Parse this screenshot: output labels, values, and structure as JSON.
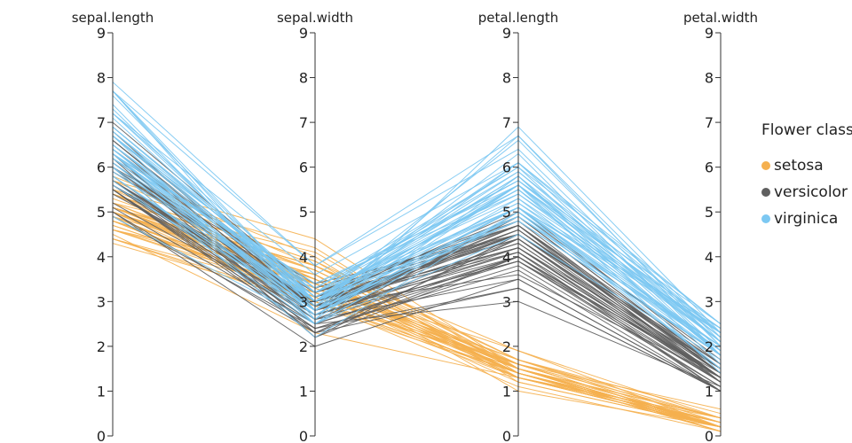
{
  "chart_data": {
    "type": "parallel_coordinates",
    "dimensions": [
      "sepal.length",
      "sepal.width",
      "petal.length",
      "petal.width"
    ],
    "range": [
      0,
      9
    ],
    "ticks": [
      "0",
      "1",
      "2",
      "3",
      "4",
      "5",
      "6",
      "7",
      "8",
      "9"
    ],
    "legend": {
      "title": "Flower class",
      "position": "right",
      "entries": [
        {
          "name": "setosa",
          "color": "#f5b04f"
        },
        {
          "name": "versicolor",
          "color": "#5f5f5f"
        },
        {
          "name": "virginica",
          "color": "#7cc8f2"
        }
      ]
    },
    "series": [
      {
        "name": "setosa",
        "color": "#f5b04f",
        "rows": [
          [
            5.1,
            3.5,
            1.4,
            0.2
          ],
          [
            4.9,
            3.0,
            1.4,
            0.2
          ],
          [
            4.7,
            3.2,
            1.3,
            0.2
          ],
          [
            4.6,
            3.1,
            1.5,
            0.2
          ],
          [
            5.0,
            3.6,
            1.4,
            0.2
          ],
          [
            5.4,
            3.9,
            1.7,
            0.4
          ],
          [
            4.6,
            3.4,
            1.4,
            0.3
          ],
          [
            5.0,
            3.4,
            1.5,
            0.2
          ],
          [
            4.4,
            2.9,
            1.4,
            0.2
          ],
          [
            4.9,
            3.1,
            1.5,
            0.1
          ],
          [
            5.4,
            3.7,
            1.5,
            0.2
          ],
          [
            4.8,
            3.4,
            1.6,
            0.2
          ],
          [
            4.8,
            3.0,
            1.4,
            0.1
          ],
          [
            4.3,
            3.0,
            1.1,
            0.1
          ],
          [
            5.8,
            4.0,
            1.2,
            0.2
          ],
          [
            5.7,
            4.4,
            1.5,
            0.4
          ],
          [
            5.4,
            3.9,
            1.3,
            0.4
          ],
          [
            5.1,
            3.5,
            1.4,
            0.3
          ],
          [
            5.7,
            3.8,
            1.7,
            0.3
          ],
          [
            5.1,
            3.8,
            1.5,
            0.3
          ],
          [
            5.4,
            3.4,
            1.7,
            0.2
          ],
          [
            5.1,
            3.7,
            1.5,
            0.4
          ],
          [
            4.6,
            3.6,
            1.0,
            0.2
          ],
          [
            5.1,
            3.3,
            1.7,
            0.5
          ],
          [
            4.8,
            3.4,
            1.9,
            0.2
          ],
          [
            5.0,
            3.0,
            1.6,
            0.2
          ],
          [
            5.0,
            3.4,
            1.6,
            0.4
          ],
          [
            5.2,
            3.5,
            1.5,
            0.2
          ],
          [
            5.2,
            3.4,
            1.4,
            0.2
          ],
          [
            4.7,
            3.2,
            1.6,
            0.2
          ],
          [
            4.8,
            3.1,
            1.6,
            0.2
          ],
          [
            5.4,
            3.4,
            1.5,
            0.4
          ],
          [
            5.2,
            4.1,
            1.5,
            0.1
          ],
          [
            5.5,
            4.2,
            1.4,
            0.2
          ],
          [
            4.9,
            3.1,
            1.5,
            0.2
          ],
          [
            5.0,
            3.2,
            1.2,
            0.2
          ],
          [
            5.5,
            3.5,
            1.3,
            0.2
          ],
          [
            4.9,
            3.6,
            1.4,
            0.1
          ],
          [
            4.4,
            3.0,
            1.3,
            0.2
          ],
          [
            5.1,
            3.4,
            1.5,
            0.2
          ],
          [
            5.0,
            3.5,
            1.3,
            0.3
          ],
          [
            4.5,
            2.3,
            1.3,
            0.3
          ],
          [
            4.4,
            3.2,
            1.3,
            0.2
          ],
          [
            5.0,
            3.5,
            1.6,
            0.6
          ],
          [
            5.1,
            3.8,
            1.9,
            0.4
          ],
          [
            4.8,
            3.0,
            1.4,
            0.3
          ],
          [
            5.1,
            3.8,
            1.6,
            0.2
          ],
          [
            4.6,
            3.2,
            1.4,
            0.2
          ],
          [
            5.3,
            3.7,
            1.5,
            0.2
          ],
          [
            5.0,
            3.3,
            1.4,
            0.2
          ]
        ]
      },
      {
        "name": "versicolor",
        "color": "#5f5f5f",
        "rows": [
          [
            7.0,
            3.2,
            4.7,
            1.4
          ],
          [
            6.4,
            3.2,
            4.5,
            1.5
          ],
          [
            6.9,
            3.1,
            4.9,
            1.5
          ],
          [
            5.5,
            2.3,
            4.0,
            1.3
          ],
          [
            6.5,
            2.8,
            4.6,
            1.5
          ],
          [
            5.7,
            2.8,
            4.5,
            1.3
          ],
          [
            6.3,
            3.3,
            4.7,
            1.6
          ],
          [
            4.9,
            2.4,
            3.3,
            1.0
          ],
          [
            6.6,
            2.9,
            4.6,
            1.3
          ],
          [
            5.2,
            2.7,
            3.9,
            1.4
          ],
          [
            5.0,
            2.0,
            3.5,
            1.0
          ],
          [
            5.9,
            3.0,
            4.2,
            1.5
          ],
          [
            6.0,
            2.2,
            4.0,
            1.0
          ],
          [
            6.1,
            2.9,
            4.7,
            1.4
          ],
          [
            5.6,
            2.9,
            3.6,
            1.3
          ],
          [
            6.7,
            3.1,
            4.4,
            1.4
          ],
          [
            5.6,
            3.0,
            4.5,
            1.5
          ],
          [
            5.8,
            2.7,
            4.1,
            1.0
          ],
          [
            6.2,
            2.2,
            4.5,
            1.5
          ],
          [
            5.6,
            2.5,
            3.9,
            1.1
          ],
          [
            5.9,
            3.2,
            4.8,
            1.8
          ],
          [
            6.1,
            2.8,
            4.0,
            1.3
          ],
          [
            6.3,
            2.5,
            4.9,
            1.5
          ],
          [
            6.1,
            2.8,
            4.7,
            1.2
          ],
          [
            6.4,
            2.9,
            4.3,
            1.3
          ],
          [
            6.6,
            3.0,
            4.4,
            1.4
          ],
          [
            6.8,
            2.8,
            4.8,
            1.4
          ],
          [
            6.7,
            3.0,
            5.0,
            1.7
          ],
          [
            6.0,
            2.9,
            4.5,
            1.5
          ],
          [
            5.7,
            2.6,
            3.5,
            1.0
          ],
          [
            5.5,
            2.4,
            3.8,
            1.1
          ],
          [
            5.5,
            2.4,
            3.7,
            1.0
          ],
          [
            5.8,
            2.7,
            3.9,
            1.2
          ],
          [
            6.0,
            2.7,
            5.1,
            1.6
          ],
          [
            5.4,
            3.0,
            4.5,
            1.5
          ],
          [
            6.0,
            3.4,
            4.5,
            1.6
          ],
          [
            6.7,
            3.1,
            4.7,
            1.5
          ],
          [
            6.3,
            2.3,
            4.4,
            1.3
          ],
          [
            5.6,
            3.0,
            4.1,
            1.3
          ],
          [
            5.5,
            2.5,
            4.0,
            1.3
          ],
          [
            5.5,
            2.6,
            4.4,
            1.2
          ],
          [
            6.1,
            3.0,
            4.6,
            1.4
          ],
          [
            5.8,
            2.6,
            4.0,
            1.2
          ],
          [
            5.0,
            2.3,
            3.3,
            1.0
          ],
          [
            5.6,
            2.7,
            4.2,
            1.3
          ],
          [
            5.7,
            3.0,
            4.2,
            1.2
          ],
          [
            5.7,
            2.9,
            4.2,
            1.3
          ],
          [
            6.2,
            2.9,
            4.3,
            1.3
          ],
          [
            5.1,
            2.5,
            3.0,
            1.1
          ],
          [
            5.7,
            2.8,
            4.1,
            1.3
          ]
        ]
      },
      {
        "name": "virginica",
        "color": "#7cc8f2",
        "rows": [
          [
            6.3,
            3.3,
            6.0,
            2.5
          ],
          [
            5.8,
            2.7,
            5.1,
            1.9
          ],
          [
            7.1,
            3.0,
            5.9,
            2.1
          ],
          [
            6.3,
            2.9,
            5.6,
            1.8
          ],
          [
            6.5,
            3.0,
            5.8,
            2.2
          ],
          [
            7.6,
            3.0,
            6.6,
            2.1
          ],
          [
            4.9,
            2.5,
            4.5,
            1.7
          ],
          [
            7.3,
            2.9,
            6.3,
            1.8
          ],
          [
            6.7,
            2.5,
            5.8,
            1.8
          ],
          [
            7.2,
            3.6,
            6.1,
            2.5
          ],
          [
            6.5,
            3.2,
            5.1,
            2.0
          ],
          [
            6.4,
            2.7,
            5.3,
            1.9
          ],
          [
            6.8,
            3.0,
            5.5,
            2.1
          ],
          [
            5.7,
            2.5,
            5.0,
            2.0
          ],
          [
            5.8,
            2.8,
            5.1,
            2.4
          ],
          [
            6.4,
            3.2,
            5.3,
            2.3
          ],
          [
            6.5,
            3.0,
            5.5,
            1.8
          ],
          [
            7.7,
            3.8,
            6.7,
            2.2
          ],
          [
            7.7,
            2.6,
            6.9,
            2.3
          ],
          [
            6.0,
            2.2,
            5.0,
            1.5
          ],
          [
            6.9,
            3.2,
            5.7,
            2.3
          ],
          [
            5.6,
            2.8,
            4.9,
            2.0
          ],
          [
            7.7,
            2.8,
            6.7,
            2.0
          ],
          [
            6.3,
            2.7,
            4.9,
            1.8
          ],
          [
            6.7,
            3.3,
            5.7,
            2.1
          ],
          [
            7.2,
            3.2,
            6.0,
            1.8
          ],
          [
            6.2,
            2.8,
            4.8,
            1.8
          ],
          [
            6.1,
            3.0,
            4.9,
            1.8
          ],
          [
            6.4,
            2.8,
            5.6,
            2.1
          ],
          [
            7.2,
            3.0,
            5.8,
            1.6
          ],
          [
            7.4,
            2.8,
            6.1,
            1.9
          ],
          [
            7.9,
            3.8,
            6.4,
            2.0
          ],
          [
            6.4,
            2.8,
            5.6,
            2.2
          ],
          [
            6.3,
            2.8,
            5.1,
            1.5
          ],
          [
            6.1,
            2.6,
            5.6,
            1.4
          ],
          [
            7.7,
            3.0,
            6.1,
            2.3
          ],
          [
            6.3,
            3.4,
            5.6,
            2.4
          ],
          [
            6.4,
            3.1,
            5.5,
            1.8
          ],
          [
            6.0,
            3.0,
            4.8,
            1.8
          ],
          [
            6.9,
            3.1,
            5.4,
            2.1
          ],
          [
            6.7,
            3.1,
            5.6,
            2.4
          ],
          [
            6.9,
            3.1,
            5.1,
            2.3
          ],
          [
            5.8,
            2.7,
            5.1,
            1.9
          ],
          [
            6.8,
            3.2,
            5.9,
            2.3
          ],
          [
            6.7,
            3.3,
            5.7,
            2.5
          ],
          [
            6.7,
            3.0,
            5.2,
            2.3
          ],
          [
            6.3,
            2.5,
            5.0,
            1.9
          ],
          [
            6.5,
            3.0,
            5.2,
            2.0
          ],
          [
            6.2,
            3.4,
            5.4,
            2.3
          ],
          [
            5.9,
            3.0,
            5.1,
            1.8
          ]
        ]
      }
    ]
  }
}
